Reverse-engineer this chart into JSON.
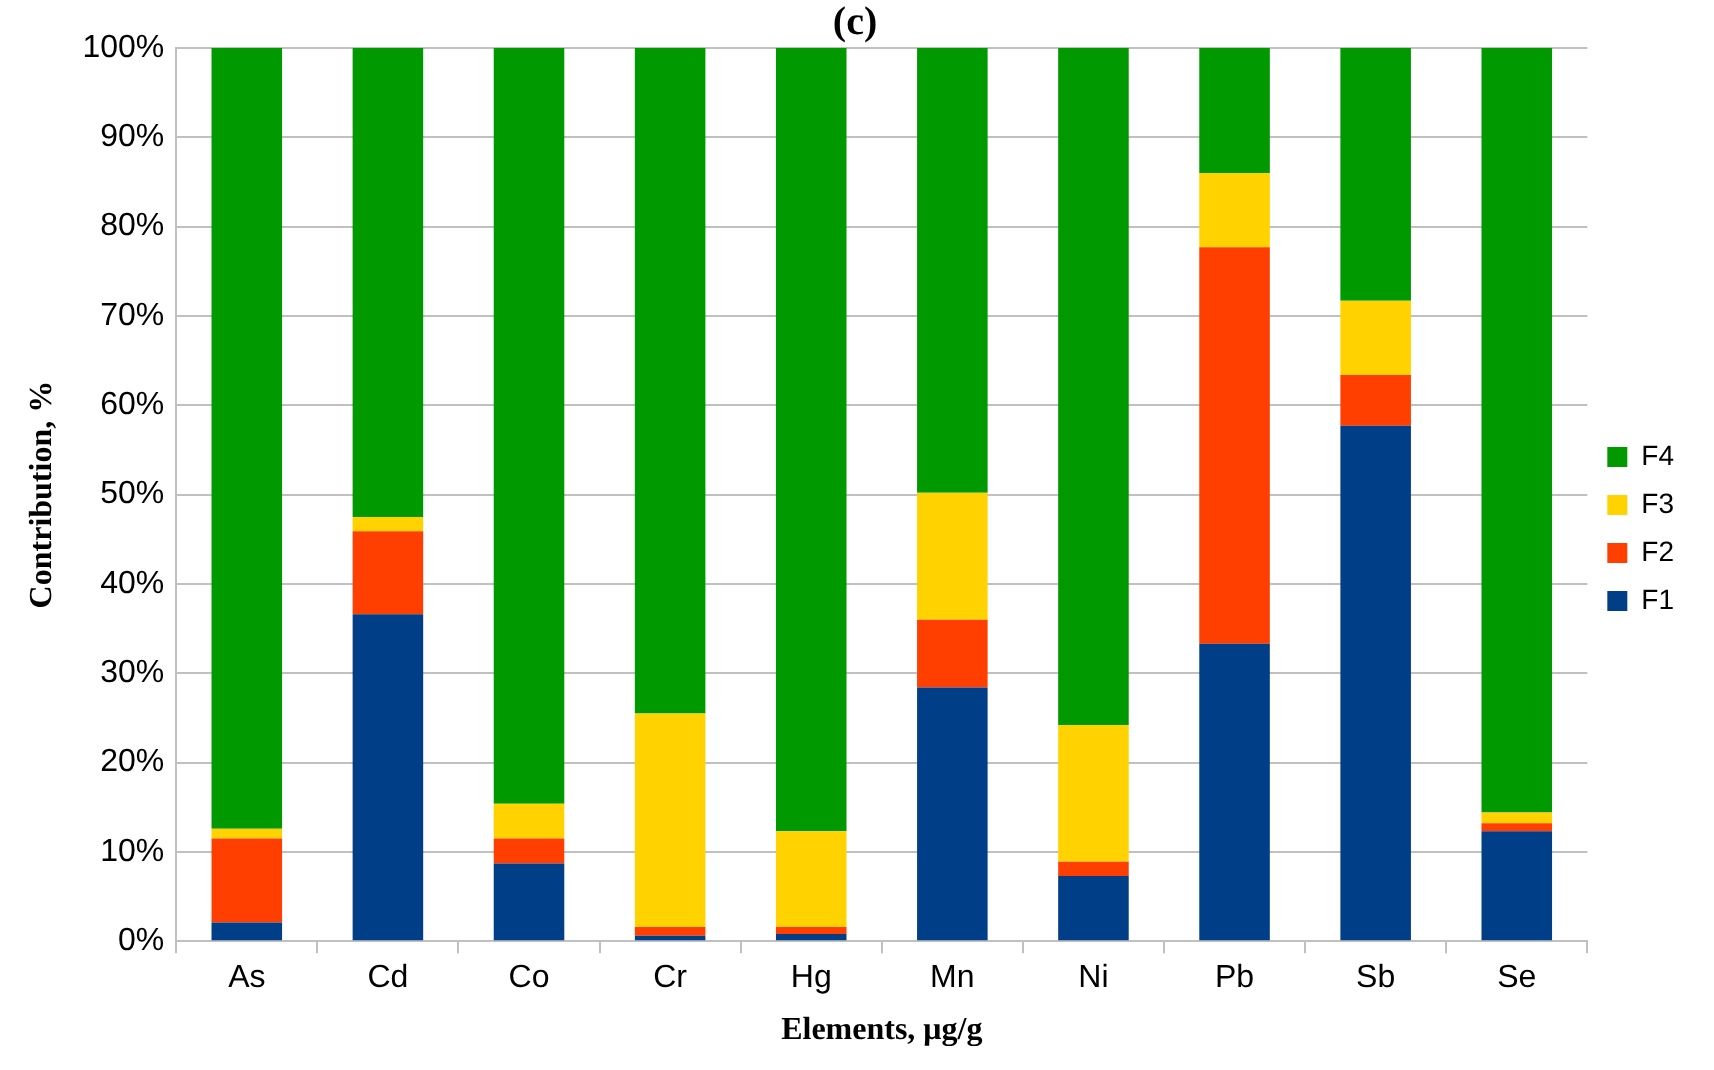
{
  "chart_data": {
    "type": "bar",
    "title": "(c)",
    "xlabel": "Elements, μg/g",
    "ylabel": "Contribution, %",
    "stacked": true,
    "grid": "y",
    "legend": "right",
    "categories": [
      "As",
      "Cd",
      "Co",
      "Cr",
      "Hg",
      "Mn",
      "Ni",
      "Pb",
      "Sb",
      "Se"
    ],
    "series": [
      {
        "name": "F1",
        "color": "#003f87",
        "values": [
          2.1,
          36.6,
          8.7,
          0.6,
          0.8,
          28.4,
          7.3,
          33.3,
          57.7,
          12.3
        ]
      },
      {
        "name": "F2",
        "color": "#ff3f00",
        "values": [
          9.4,
          9.3,
          2.8,
          1.0,
          0.8,
          7.6,
          1.6,
          44.4,
          5.7,
          0.9
        ]
      },
      {
        "name": "F3",
        "color": "#ffd200",
        "values": [
          1.1,
          1.6,
          3.9,
          23.9,
          10.7,
          14.2,
          15.3,
          8.3,
          8.3,
          1.2
        ]
      },
      {
        "name": "F4",
        "color": "#009900",
        "values": [
          87.4,
          52.5,
          84.6,
          74.5,
          87.7,
          49.8,
          75.8,
          14.0,
          28.3,
          85.6
        ]
      }
    ],
    "ylim": [
      0,
      100
    ],
    "yticks": [
      {
        "value": 0,
        "label": "0%"
      },
      {
        "value": 10,
        "label": "10%"
      },
      {
        "value": 20,
        "label": "20%"
      },
      {
        "value": 30,
        "label": "30%"
      },
      {
        "value": 40,
        "label": "40%"
      },
      {
        "value": 50,
        "label": "50%"
      },
      {
        "value": 60,
        "label": "60%"
      },
      {
        "value": 70,
        "label": "70%"
      },
      {
        "value": 80,
        "label": "80%"
      },
      {
        "value": 90,
        "label": "90%"
      },
      {
        "value": 100,
        "label": "100%"
      }
    ]
  }
}
